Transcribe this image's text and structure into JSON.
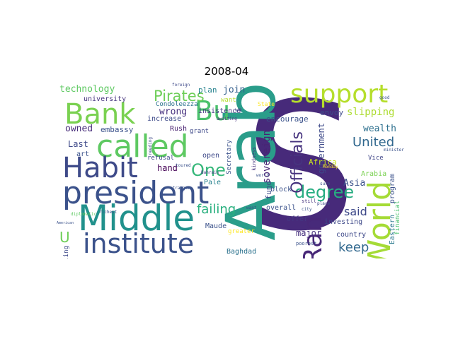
{
  "title": "2008-04",
  "words": [
    {
      "text": "S",
      "color": "#472a7a"
    },
    {
      "text": "Arab",
      "color": "#2a9d8a"
    },
    {
      "text": "president",
      "color": "#3b528b"
    },
    {
      "text": "Middle",
      "color": "#21918c"
    },
    {
      "text": "called",
      "color": "#5ec962"
    },
    {
      "text": "institute",
      "color": "#3b528b"
    },
    {
      "text": "Bank",
      "color": "#7ad151"
    },
    {
      "text": "support",
      "color": "#b5de2b"
    },
    {
      "text": "World",
      "color": "#a5db36"
    },
    {
      "text": "Habit",
      "color": "#3e4a89"
    },
    {
      "text": "Bu",
      "color": "#4ac16d"
    },
    {
      "text": "Ran",
      "color": "#482878"
    },
    {
      "text": "degree",
      "color": "#27ad81"
    },
    {
      "text": "One",
      "color": "#35b779"
    },
    {
      "text": "Officials",
      "color": "#46337e"
    },
    {
      "text": "Pirates",
      "color": "#6ece58"
    },
    {
      "text": "failing",
      "color": "#2ab07f"
    },
    {
      "text": "United",
      "color": "#31688e"
    },
    {
      "text": "keep",
      "color": "#31688e"
    },
    {
      "text": "said",
      "color": "#3e4989"
    },
    {
      "text": "U",
      "color": "#6ece58"
    },
    {
      "text": "technology",
      "color": "#5ec962"
    },
    {
      "text": "sovereign",
      "color": "#482475"
    },
    {
      "text": "slipping",
      "color": "#addc30"
    },
    {
      "text": "wrong",
      "color": "#46307e"
    },
    {
      "text": "government",
      "color": "#3e4a89"
    },
    {
      "text": "wealth",
      "color": "#2d708e"
    },
    {
      "text": "owned",
      "color": "#472c7a"
    },
    {
      "text": "join",
      "color": "#34608d"
    },
    {
      "text": "Asia",
      "color": "#3b528b"
    },
    {
      "text": "Last",
      "color": "#3e4989"
    },
    {
      "text": "hand",
      "color": "#440154"
    },
    {
      "text": "major",
      "color": "#46307e"
    },
    {
      "text": "envoy",
      "color": "#3e4a89"
    },
    {
      "text": "embassy",
      "color": "#3b528b"
    },
    {
      "text": "university",
      "color": "#46337e"
    },
    {
      "text": "plan",
      "color": "#26828e"
    },
    {
      "text": "encourage",
      "color": "#3b528b"
    },
    {
      "text": "insistence",
      "color": "#443983"
    },
    {
      "text": "increase",
      "color": "#3e4a89"
    },
    {
      "text": "Condoleezza",
      "color": "#2c728e"
    },
    {
      "text": "Rush",
      "color": "#481f70"
    },
    {
      "text": "grant",
      "color": "#3e4989"
    },
    {
      "text": "art",
      "color": "#3b528b"
    },
    {
      "text": "open",
      "color": "#3e4989"
    },
    {
      "text": "Pale",
      "color": "#26828e"
    },
    {
      "text": "Africa",
      "color": "#c8e020"
    },
    {
      "text": "fund",
      "color": "#3e4a89"
    },
    {
      "text": "block",
      "color": "#3b528b"
    },
    {
      "text": "overall",
      "color": "#3b528b"
    },
    {
      "text": "Maude",
      "color": "#3b528b"
    },
    {
      "text": "greater",
      "color": "#fde725"
    },
    {
      "text": "offer",
      "color": "#443983"
    },
    {
      "text": "investing",
      "color": "#3e4989"
    },
    {
      "text": "country",
      "color": "#3e4989"
    },
    {
      "text": "Arabia",
      "color": "#7ad151"
    },
    {
      "text": "program",
      "color": "#3b528b"
    },
    {
      "text": "Eastern",
      "color": "#2a788e"
    },
    {
      "text": "Vice",
      "color": "#404688"
    },
    {
      "text": "stumbling",
      "color": "#3e4989"
    },
    {
      "text": "Baghdad",
      "color": "#2c728e"
    },
    {
      "text": "refusal",
      "color": "#3e4a89"
    },
    {
      "text": "want",
      "color": "#b5de2b"
    },
    {
      "text": "wa",
      "color": "#3e4989"
    },
    {
      "text": "State",
      "color": "#fde725"
    },
    {
      "text": "Secretary",
      "color": "#3b528b"
    },
    {
      "text": "financial",
      "color": "#4ac16d"
    },
    {
      "text": "poorest",
      "color": "#3b528b"
    },
    {
      "text": "still",
      "color": "#46337e"
    },
    {
      "text": "minister",
      "color": "#3b528b"
    },
    {
      "text": "kindness",
      "color": "#46337e"
    },
    {
      "text": "foreign",
      "color": "#3e4989"
    },
    {
      "text": "good",
      "color": "#3b528b"
    },
    {
      "text": "awaiting",
      "color": "#46337e"
    },
    {
      "text": "needing",
      "color": "#3e4989"
    },
    {
      "text": "toured",
      "color": "#3b528b"
    },
    {
      "text": "stranger",
      "color": "#3b528b"
    },
    {
      "text": "Bahrain",
      "color": "#443983"
    },
    {
      "text": "richest",
      "color": "#3b528b"
    },
    {
      "text": "diplomatic",
      "color": "#5ec962"
    },
    {
      "text": "American",
      "color": "#3b528b"
    },
    {
      "text": "Monday",
      "color": "#fde725"
    },
    {
      "text": "city",
      "color": "#3b528b"
    },
    {
      "text": "place",
      "color": "#3e4989"
    },
    {
      "text": "want",
      "color": "#3e4989"
    },
    {
      "text": "sure",
      "color": "#3b528b"
    },
    {
      "text": "world",
      "color": "#3b528b"
    }
  ]
}
